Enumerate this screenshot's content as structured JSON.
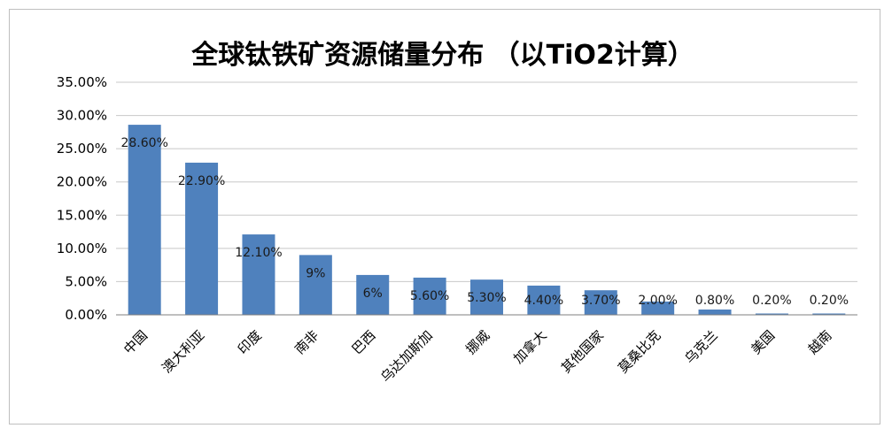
{
  "chart_data": {
    "type": "bar",
    "title": "全球钛铁矿资源储量分布 （以TiO2计算）",
    "categories": [
      "中国",
      "澳大利亚",
      "印度",
      "南非",
      "巴西",
      "乌达加斯加",
      "挪威",
      "加拿大",
      "其他国家",
      "莫桑比克",
      "乌克兰",
      "美国",
      "越南"
    ],
    "values": [
      28.6,
      22.9,
      12.1,
      9,
      6,
      5.6,
      5.3,
      4.4,
      3.7,
      2.0,
      0.8,
      0.2,
      0.2
    ],
    "data_labels": [
      "28.60%",
      "22.90%",
      "12.10%",
      "9%",
      "6%",
      "5.60%",
      "5.30%",
      "4.40%",
      "3.70%",
      "2.00%",
      "0.80%",
      "0.20%",
      "0.20%"
    ],
    "y_ticks": [
      "0.00%",
      "5.00%",
      "10.00%",
      "15.00%",
      "20.00%",
      "25.00%",
      "30.00%",
      "35.00%"
    ],
    "ylim": [
      0,
      35
    ],
    "grid": true,
    "legend": "none",
    "bar_color": "#4f81bd"
  }
}
